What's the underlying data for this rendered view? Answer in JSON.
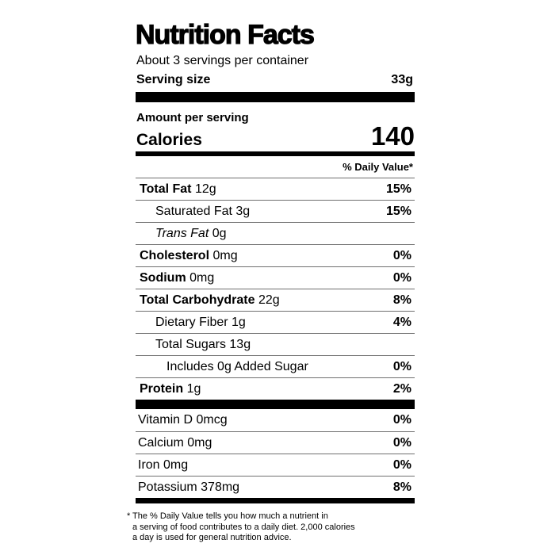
{
  "label": {
    "title": "Nutrition Facts",
    "servings_per_container": "About 3 servings per container",
    "serving_size_label": "Serving size",
    "serving_size_value": "33g",
    "amount_per_serving": "Amount per serving",
    "calories_label": "Calories",
    "calories_value": "140",
    "daily_value_header": "% Daily Value*",
    "nutrient_rows": [
      {
        "name": "Total Fat",
        "amount": "12g",
        "dv": "15%"
      },
      {
        "name": "Saturated Fat",
        "amount": "3g",
        "dv": "15%"
      },
      {
        "name": "Trans Fat",
        "amount": "0g",
        "dv": ""
      },
      {
        "name": "Cholesterol",
        "amount": "0mg",
        "dv": "0%"
      },
      {
        "name": "Sodium",
        "amount": "0mg",
        "dv": "0%"
      },
      {
        "name": "Total Carbohydrate",
        "amount": "22g",
        "dv": "8%"
      },
      {
        "name": "Dietary Fiber",
        "amount": "1g",
        "dv": "4%"
      },
      {
        "name": "Total Sugars",
        "amount": "13g",
        "dv": ""
      },
      {
        "name": "Includes 0g Added Sugar",
        "amount": "",
        "dv": "0%"
      },
      {
        "name": "Protein",
        "amount": "1g",
        "dv": "2%"
      }
    ],
    "vitamin_rows": [
      {
        "name": "Vitamin D",
        "amount": "0mcg",
        "dv": "0%"
      },
      {
        "name": "Calcium",
        "amount": "0mg",
        "dv": "0%"
      },
      {
        "name": "Iron",
        "amount": "0mg",
        "dv": "0%"
      },
      {
        "name": "Potassium",
        "amount": "378mg",
        "dv": "8%"
      }
    ],
    "footnote_marker": "*",
    "footnote_lines": [
      "The % Daily Value tells you how much a nutrient in",
      "a serving of food contributes to a daily diet. 2,000 calories",
      "a day is used for general nutrition advice."
    ]
  },
  "colors": {
    "background": "#ffffff",
    "text": "#000000",
    "divider_bar": "#000000",
    "separator_line": "#6f6f6f"
  }
}
